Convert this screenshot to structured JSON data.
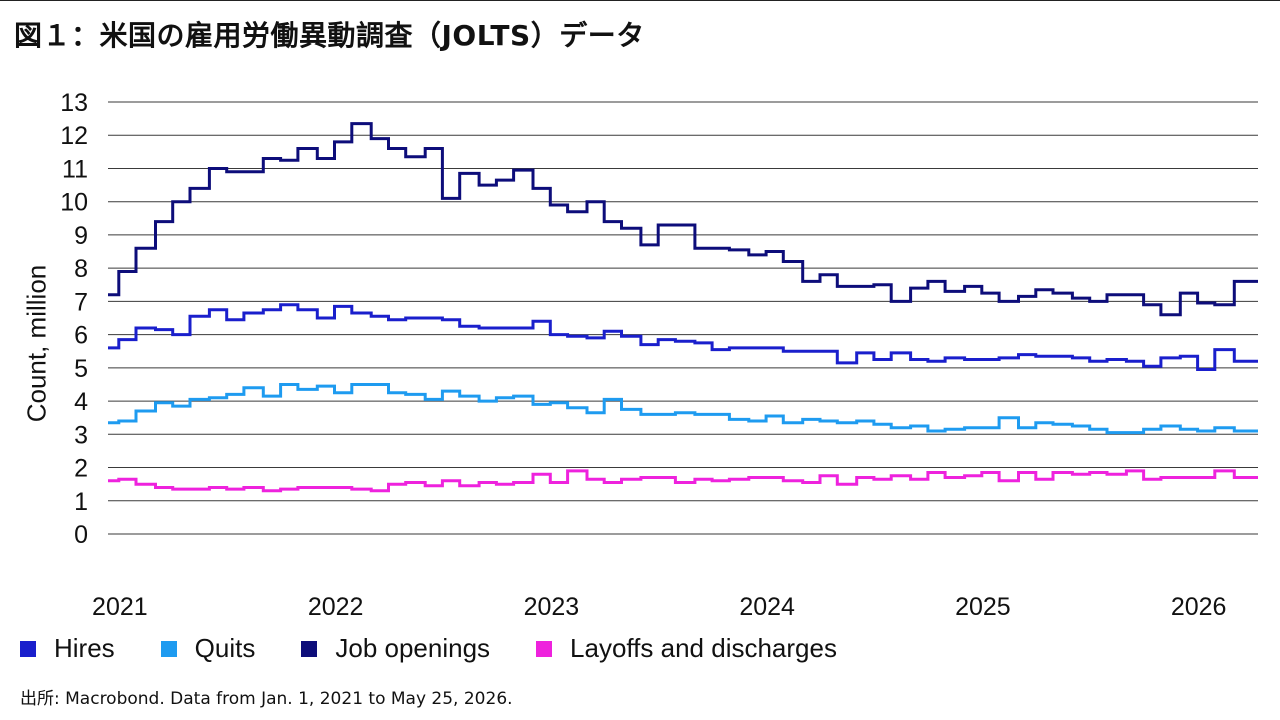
{
  "header": {
    "title": "図１：米国の雇用労働異動調査（JOLTS）データ"
  },
  "footer": {
    "source": "出所: Macrobond. Data from Jan. 1, 2021 to May 25, 2026."
  },
  "legend": [
    {
      "label": "Hires",
      "color": "#1a1fcc"
    },
    {
      "label": "Quits",
      "color": "#1e9bf0"
    },
    {
      "label": "Job openings",
      "color": "#0d0d7a"
    },
    {
      "label": "Layoffs and discharges",
      "color": "#ee22dd"
    }
  ],
  "chart_data": {
    "type": "line",
    "step": true,
    "ylabel": "Count, million",
    "xlabel": "",
    "ylim": [
      0,
      13
    ],
    "yticks": [
      0,
      1,
      2,
      3,
      4,
      5,
      6,
      7,
      8,
      9,
      10,
      11,
      12,
      13
    ],
    "xlim": [
      2020.95,
      2026.28
    ],
    "xticks": [
      2021,
      2022,
      2023,
      2024,
      2025,
      2026
    ],
    "grid": "horizontal",
    "legend_position": "bottom",
    "series": [
      {
        "name": "Job openings",
        "color": "#0d0d7a",
        "x": [
          2020.95,
          2021.0,
          2021.08,
          2021.17,
          2021.25,
          2021.33,
          2021.42,
          2021.5,
          2021.58,
          2021.67,
          2021.75,
          2021.83,
          2021.92,
          2022.0,
          2022.08,
          2022.17,
          2022.25,
          2022.33,
          2022.42,
          2022.5,
          2022.58,
          2022.67,
          2022.75,
          2022.83,
          2022.92,
          2023.0,
          2023.08,
          2023.17,
          2023.25,
          2023.33,
          2023.42,
          2023.5,
          2023.58,
          2023.67,
          2023.75,
          2023.83,
          2023.92,
          2024.0,
          2024.08,
          2024.17,
          2024.25,
          2024.33,
          2024.42,
          2024.5,
          2024.58,
          2024.67,
          2024.75,
          2024.83,
          2024.92,
          2025.0,
          2025.08,
          2025.17,
          2025.25,
          2025.33,
          2025.42,
          2025.5,
          2025.58,
          2025.67,
          2025.75,
          2025.83,
          2025.92,
          2026.0,
          2026.08,
          2026.17
        ],
        "y": [
          7.2,
          7.9,
          8.6,
          9.4,
          10.0,
          10.4,
          11.0,
          10.9,
          10.9,
          11.3,
          11.25,
          11.6,
          11.3,
          11.8,
          12.35,
          11.9,
          11.6,
          11.35,
          11.6,
          10.1,
          10.85,
          10.5,
          10.65,
          10.95,
          10.4,
          9.9,
          9.7,
          10.0,
          9.4,
          9.2,
          8.7,
          9.3,
          9.3,
          8.6,
          8.6,
          8.55,
          8.4,
          8.5,
          8.2,
          7.6,
          7.8,
          7.45,
          7.45,
          7.5,
          7.0,
          7.4,
          7.6,
          7.3,
          7.45,
          7.25,
          7.0,
          7.15,
          7.35,
          7.25,
          7.1,
          7.0,
          7.2,
          7.2,
          6.9,
          6.6,
          7.25,
          6.95,
          6.9,
          7.6
        ]
      },
      {
        "name": "Hires",
        "color": "#1a1fcc",
        "x": [
          2020.95,
          2021.0,
          2021.08,
          2021.17,
          2021.25,
          2021.33,
          2021.42,
          2021.5,
          2021.58,
          2021.67,
          2021.75,
          2021.83,
          2021.92,
          2022.0,
          2022.08,
          2022.17,
          2022.25,
          2022.33,
          2022.42,
          2022.5,
          2022.58,
          2022.67,
          2022.75,
          2022.83,
          2022.92,
          2023.0,
          2023.08,
          2023.17,
          2023.25,
          2023.33,
          2023.42,
          2023.5,
          2023.58,
          2023.67,
          2023.75,
          2023.83,
          2023.92,
          2024.0,
          2024.08,
          2024.17,
          2024.25,
          2024.33,
          2024.42,
          2024.5,
          2024.58,
          2024.67,
          2024.75,
          2024.83,
          2024.92,
          2025.0,
          2025.08,
          2025.17,
          2025.25,
          2025.33,
          2025.42,
          2025.5,
          2025.58,
          2025.67,
          2025.75,
          2025.83,
          2025.92,
          2026.0,
          2026.08,
          2026.17
        ],
        "y": [
          5.6,
          5.85,
          6.2,
          6.15,
          6.0,
          6.55,
          6.75,
          6.45,
          6.65,
          6.75,
          6.9,
          6.75,
          6.5,
          6.85,
          6.65,
          6.55,
          6.45,
          6.5,
          6.5,
          6.45,
          6.25,
          6.2,
          6.2,
          6.2,
          6.4,
          6.0,
          5.95,
          5.9,
          6.1,
          5.95,
          5.7,
          5.85,
          5.8,
          5.75,
          5.55,
          5.6,
          5.6,
          5.6,
          5.5,
          5.5,
          5.5,
          5.15,
          5.45,
          5.25,
          5.45,
          5.25,
          5.2,
          5.3,
          5.25,
          5.25,
          5.3,
          5.4,
          5.35,
          5.35,
          5.3,
          5.2,
          5.25,
          5.2,
          5.05,
          5.3,
          5.35,
          4.95,
          5.55,
          5.2
        ]
      },
      {
        "name": "Quits",
        "color": "#1e9bf0",
        "x": [
          2020.95,
          2021.0,
          2021.08,
          2021.17,
          2021.25,
          2021.33,
          2021.42,
          2021.5,
          2021.58,
          2021.67,
          2021.75,
          2021.83,
          2021.92,
          2022.0,
          2022.08,
          2022.17,
          2022.25,
          2022.33,
          2022.42,
          2022.5,
          2022.58,
          2022.67,
          2022.75,
          2022.83,
          2022.92,
          2023.0,
          2023.08,
          2023.17,
          2023.25,
          2023.33,
          2023.42,
          2023.5,
          2023.58,
          2023.67,
          2023.75,
          2023.83,
          2023.92,
          2024.0,
          2024.08,
          2024.17,
          2024.25,
          2024.33,
          2024.42,
          2024.5,
          2024.58,
          2024.67,
          2024.75,
          2024.83,
          2024.92,
          2025.0,
          2025.08,
          2025.17,
          2025.25,
          2025.33,
          2025.42,
          2025.5,
          2025.58,
          2025.67,
          2025.75,
          2025.83,
          2025.92,
          2026.0,
          2026.08,
          2026.17
        ],
        "y": [
          3.35,
          3.4,
          3.7,
          3.95,
          3.85,
          4.05,
          4.1,
          4.2,
          4.4,
          4.15,
          4.5,
          4.35,
          4.45,
          4.25,
          4.5,
          4.5,
          4.25,
          4.2,
          4.05,
          4.3,
          4.15,
          4.0,
          4.1,
          4.15,
          3.9,
          3.95,
          3.8,
          3.65,
          4.05,
          3.75,
          3.6,
          3.6,
          3.65,
          3.6,
          3.6,
          3.45,
          3.4,
          3.55,
          3.35,
          3.45,
          3.4,
          3.35,
          3.4,
          3.3,
          3.2,
          3.25,
          3.1,
          3.15,
          3.2,
          3.2,
          3.5,
          3.2,
          3.35,
          3.3,
          3.25,
          3.15,
          3.05,
          3.05,
          3.15,
          3.25,
          3.15,
          3.1,
          3.2,
          3.1
        ]
      },
      {
        "name": "Layoffs and discharges",
        "color": "#ee22dd",
        "x": [
          2020.95,
          2021.0,
          2021.08,
          2021.17,
          2021.25,
          2021.33,
          2021.42,
          2021.5,
          2021.58,
          2021.67,
          2021.75,
          2021.83,
          2021.92,
          2022.0,
          2022.08,
          2022.17,
          2022.25,
          2022.33,
          2022.42,
          2022.5,
          2022.58,
          2022.67,
          2022.75,
          2022.83,
          2022.92,
          2023.0,
          2023.08,
          2023.17,
          2023.25,
          2023.33,
          2023.42,
          2023.5,
          2023.58,
          2023.67,
          2023.75,
          2023.83,
          2023.92,
          2024.0,
          2024.08,
          2024.17,
          2024.25,
          2024.33,
          2024.42,
          2024.5,
          2024.58,
          2024.67,
          2024.75,
          2024.83,
          2024.92,
          2025.0,
          2025.08,
          2025.17,
          2025.25,
          2025.33,
          2025.42,
          2025.5,
          2025.58,
          2025.67,
          2025.75,
          2025.83,
          2025.92,
          2026.0,
          2026.08,
          2026.17
        ],
        "y": [
          1.6,
          1.65,
          1.5,
          1.4,
          1.35,
          1.35,
          1.4,
          1.35,
          1.4,
          1.3,
          1.35,
          1.4,
          1.4,
          1.4,
          1.35,
          1.3,
          1.5,
          1.55,
          1.45,
          1.6,
          1.45,
          1.55,
          1.5,
          1.55,
          1.8,
          1.55,
          1.9,
          1.65,
          1.55,
          1.65,
          1.7,
          1.7,
          1.55,
          1.65,
          1.6,
          1.65,
          1.7,
          1.7,
          1.6,
          1.55,
          1.75,
          1.5,
          1.7,
          1.65,
          1.75,
          1.65,
          1.85,
          1.7,
          1.75,
          1.85,
          1.6,
          1.85,
          1.65,
          1.85,
          1.8,
          1.85,
          1.8,
          1.9,
          1.65,
          1.7,
          1.7,
          1.7,
          1.9,
          1.7
        ]
      }
    ]
  }
}
